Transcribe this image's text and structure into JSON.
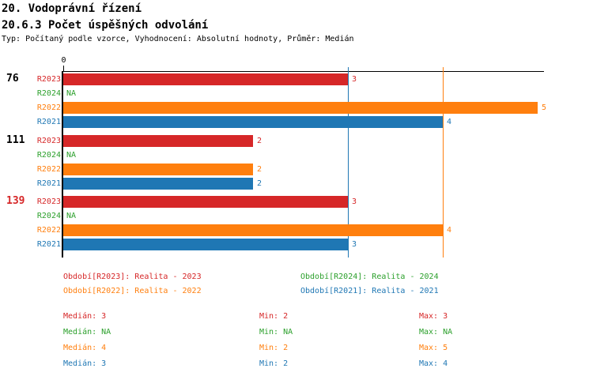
{
  "header": {
    "title": "20. Vodoprávní řízení",
    "subtitle": "20.6.3 Počet úspěšných odvolání",
    "meta": "Typ: Počítaný podle vzorce, Vyhodnocení: Absolutní hodnoty, Průměr: Medián"
  },
  "colors": {
    "r2023_red": "#d62728",
    "r2024_green": "#2ca02c",
    "r2022_orange": "#ff7f0e",
    "r2021_blue": "#1f77b4",
    "axis_black": "#000000"
  },
  "chart_data": {
    "type": "bar",
    "orientation": "horizontal",
    "x_zero_label": "0",
    "xlim": [
      0,
      5.07
    ],
    "grid": "off",
    "series": [
      "R2023",
      "R2024",
      "R2022",
      "R2021"
    ],
    "groups": [
      {
        "label": "76",
        "label_color": "#000000",
        "bars": [
          {
            "series": "R2023",
            "value": 3,
            "display": "3",
            "color": "#d62728"
          },
          {
            "series": "R2024",
            "value": null,
            "display": "NA",
            "color": "#2ca02c"
          },
          {
            "series": "R2022",
            "value": 5,
            "display": "5",
            "color": "#ff7f0e"
          },
          {
            "series": "R2021",
            "value": 4,
            "display": "4",
            "color": "#1f77b4"
          }
        ]
      },
      {
        "label": "111",
        "label_color": "#000000",
        "bars": [
          {
            "series": "R2023",
            "value": 2,
            "display": "2",
            "color": "#d62728"
          },
          {
            "series": "R2024",
            "value": null,
            "display": "NA",
            "color": "#2ca02c"
          },
          {
            "series": "R2022",
            "value": 2,
            "display": "2",
            "color": "#ff7f0e"
          },
          {
            "series": "R2021",
            "value": 2,
            "display": "2",
            "color": "#1f77b4"
          }
        ]
      },
      {
        "label": "139",
        "label_color": "#d62728",
        "bars": [
          {
            "series": "R2023",
            "value": 3,
            "display": "3",
            "color": "#d62728"
          },
          {
            "series": "R2024",
            "value": null,
            "display": "NA",
            "color": "#2ca02c"
          },
          {
            "series": "R2022",
            "value": 4,
            "display": "4",
            "color": "#ff7f0e"
          },
          {
            "series": "R2021",
            "value": 3,
            "display": "3",
            "color": "#1f77b4"
          }
        ]
      }
    ],
    "median_lines": [
      {
        "value": 3,
        "color": "#1f77b4"
      },
      {
        "value": 4,
        "color": "#ff7f0e"
      }
    ]
  },
  "legend": {
    "items": [
      {
        "text": "Období[R2023]: Realita - 2023",
        "color": "#d62728"
      },
      {
        "text": "Období[R2024]: Realita - 2024",
        "color": "#2ca02c"
      },
      {
        "text": "Období[R2022]: Realita - 2022",
        "color": "#ff7f0e"
      },
      {
        "text": "Období[R2021]: Realita - 2021",
        "color": "#1f77b4"
      }
    ]
  },
  "stats": {
    "rows": [
      {
        "median": "Medián: 3",
        "min": "Min: 2",
        "max": "Max: 3",
        "color": "#d62728"
      },
      {
        "median": "Medián: NA",
        "min": "Min: NA",
        "max": "Max: NA",
        "color": "#2ca02c"
      },
      {
        "median": "Medián: 4",
        "min": "Min: 2",
        "max": "Max: 5",
        "color": "#ff7f0e"
      },
      {
        "median": "Medián: 3",
        "min": "Min: 2",
        "max": "Max: 4",
        "color": "#1f77b4"
      }
    ]
  }
}
